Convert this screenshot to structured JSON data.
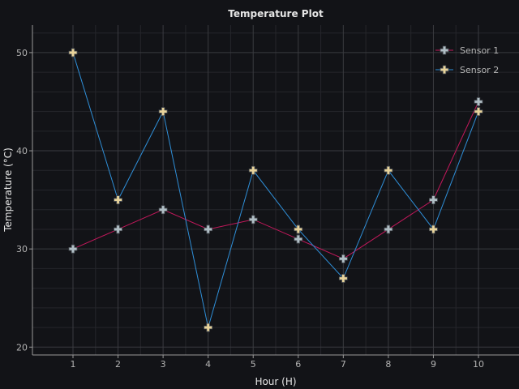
{
  "chart_data": {
    "type": "line",
    "title": "Temperature Plot",
    "xlabel": "Hour (H)",
    "ylabel": "Temperature (°C)",
    "x": [
      1,
      2,
      3,
      4,
      5,
      6,
      7,
      8,
      9,
      10
    ],
    "xlim": [
      0.1,
      10.9
    ],
    "ylim": [
      19.2,
      52.8
    ],
    "xticks": [
      1,
      2,
      3,
      4,
      5,
      6,
      7,
      8,
      9,
      10
    ],
    "yticks": [
      20,
      30,
      40,
      50
    ],
    "grid": true,
    "legend_position": "top-right",
    "series": [
      {
        "name": "Sensor 1",
        "values": [
          30,
          32,
          34,
          32,
          33,
          31,
          29,
          32,
          35,
          45
        ],
        "line_color": "#c2185b",
        "marker": "plus",
        "marker_color": "#b0bec5"
      },
      {
        "name": "Sensor 2",
        "values": [
          50,
          35,
          44,
          22,
          38,
          32,
          27,
          38,
          32,
          44
        ],
        "line_color": "#2f8fd8",
        "marker": "plus",
        "marker_color": "#e8d39a"
      }
    ]
  },
  "colors": {
    "background": "#121317",
    "text": "#e6e6e6",
    "tick_text": "#b4b4b4",
    "axis_line": "#9a9a9a",
    "grid_major": "#3a3b40",
    "grid_minor": "#25262b",
    "marker_outline": "#4a4f55"
  }
}
